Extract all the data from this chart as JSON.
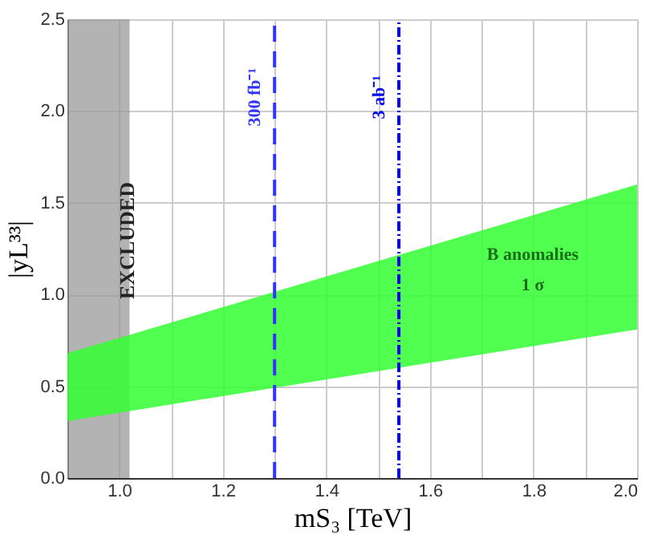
{
  "chart_data": {
    "type": "area",
    "xlabel": "mS₃ [TeV]",
    "ylabel": "|yL³³|",
    "xlim": [
      0.9,
      2.0
    ],
    "ylim": [
      0,
      2.5
    ],
    "xticks": [
      {
        "value": 0.9,
        "label": null
      },
      {
        "value": 1.0,
        "label": "1.0"
      },
      {
        "value": 1.1,
        "label": null
      },
      1.2,
      {
        "value": 1.3,
        "label": null
      },
      1.4,
      {
        "value": 1.5,
        "label": null
      },
      1.6,
      {
        "value": 1.7,
        "label": null
      },
      1.8,
      {
        "value": 1.9,
        "label": null
      },
      {
        "value": 2.0,
        "label": "2.0"
      }
    ],
    "yticks": [
      {
        "value": 0,
        "label": "0.0"
      },
      0.5,
      {
        "value": 1,
        "label": "1.0"
      },
      1.5,
      {
        "value": 2,
        "label": "2.0"
      },
      2.5
    ],
    "grid": true,
    "series": [
      {
        "color": "#33ff33",
        "x": [
          0.9,
          2.0
        ],
        "values": [
          null,
          null
        ],
        "lower": [
          0.31,
          0.81
        ],
        "upper": [
          0.68,
          1.6
        ]
      }
    ],
    "bands": [
      {
        "axis": "x",
        "from": 0.9,
        "to": 1.02,
        "label": "EXCLUDED",
        "color": "#999999"
      }
    ],
    "ref_lines": [
      {
        "axis": "x",
        "value": 1.3,
        "label": "300 fb⁻¹",
        "color": "#3333ff",
        "line_style": "dashed"
      },
      {
        "axis": "x",
        "value": 1.54,
        "label": "3 ab⁻¹",
        "color": "#0000ee",
        "line_style": "dotted"
      }
    ],
    "annotations": [
      "B anomalies",
      "1 σ"
    ]
  }
}
